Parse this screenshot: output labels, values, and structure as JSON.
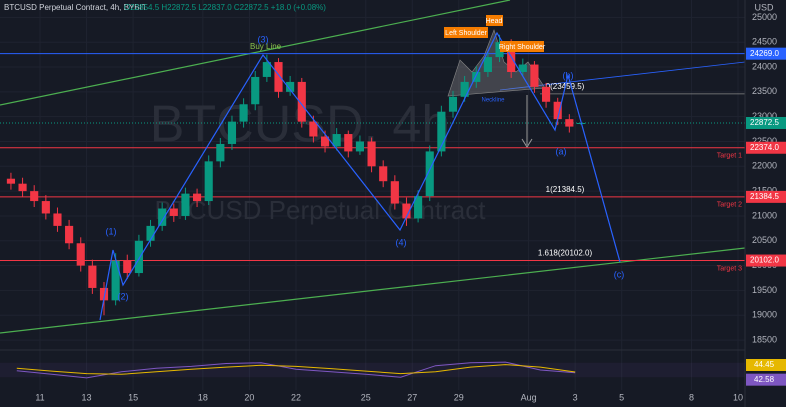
{
  "chart_data": {
    "type": "candlestick",
    "title": "BTCUSD Perpetual Contract, 4h, BYBIT",
    "ohlc_label": "O22854.5 H22872.5 L22837.0 C22872.5 +18.0 (+0.08%)",
    "y_axis_label": "USD",
    "watermark": [
      "BTCUSD, 4h",
      "BTCUSD Perpetual Contract"
    ],
    "up_color": "#089981",
    "down_color": "#f23645",
    "x": [
      9.5,
      10,
      10.5,
      11,
      11.5,
      12,
      12.5,
      13,
      13.5,
      14,
      14.5,
      15,
      15.5,
      16,
      16.5,
      17,
      17.5,
      18,
      18.5,
      19,
      19.5,
      20,
      20.5,
      21,
      21.5,
      22,
      22.5,
      23,
      23.5,
      24,
      24.5,
      25,
      25.5,
      26,
      26.5,
      27,
      27.5,
      28,
      28.5,
      29,
      29.5,
      30,
      30.5,
      31,
      31.5,
      32,
      32.5,
      33,
      33.5,
      34
    ],
    "open": [
      21750,
      21650,
      21500,
      21300,
      21050,
      20800,
      20450,
      20000,
      19550,
      19300,
      20100,
      19850,
      20500,
      20800,
      21150,
      21000,
      21450,
      21300,
      22100,
      22450,
      22900,
      23250,
      23800,
      24100,
      23500,
      23700,
      22900,
      22600,
      22400,
      22650,
      22300,
      22500,
      22000,
      21700,
      21250,
      20950,
      21400,
      22300,
      23100,
      23400,
      23700,
      23900,
      24200,
      24500,
      23900,
      24050,
      23600,
      23300,
      22950,
      22854.5
    ],
    "high": [
      21870,
      21770,
      21620,
      21420,
      21170,
      20920,
      20570,
      20120,
      19670,
      20250,
      20220,
      20620,
      20920,
      21270,
      21250,
      21570,
      21550,
      22220,
      22570,
      23020,
      23370,
      23920,
      24250,
      24180,
      23820,
      23780,
      23020,
      22720,
      22770,
      22720,
      22620,
      22580,
      22120,
      21820,
      21370,
      21520,
      22420,
      23220,
      23520,
      23820,
      24020,
      24320,
      24650,
      24560,
      24170,
      24120,
      23680,
      23380,
      23050,
      22872.5
    ],
    "low": [
      21530,
      21380,
      21180,
      20930,
      20680,
      20330,
      19880,
      19430,
      19000,
      19200,
      19730,
      19780,
      20380,
      20700,
      20880,
      20920,
      21180,
      21220,
      21980,
      22330,
      22780,
      23130,
      23700,
      23380,
      23420,
      22780,
      22480,
      22280,
      22320,
      22180,
      22230,
      21880,
      21580,
      21130,
      20800,
      20870,
      21300,
      22200,
      22980,
      23300,
      23580,
      23800,
      24100,
      23780,
      23820,
      23480,
      23180,
      22830,
      22680,
      22837
    ],
    "close": [
      21650,
      21500,
      21300,
      21050,
      20800,
      20450,
      20000,
      19550,
      19300,
      20100,
      19850,
      20500,
      20800,
      21150,
      21000,
      21450,
      21300,
      22100,
      22450,
      22900,
      23250,
      23800,
      24100,
      23500,
      23700,
      22900,
      22600,
      22400,
      22650,
      22300,
      22500,
      22000,
      21700,
      21250,
      20950,
      21400,
      22300,
      23100,
      23400,
      23700,
      23900,
      24200,
      24500,
      23900,
      24050,
      23600,
      23300,
      22950,
      22800,
      22872.5
    ],
    "xlim": [
      9.28,
      41.3
    ],
    "ylim": [
      18300,
      25350
    ],
    "xticks": [
      11,
      13,
      15,
      18,
      20,
      22,
      25,
      27,
      29,
      {
        "value": 32,
        "label": "Aug"
      },
      {
        "value": 34,
        "label": "3"
      },
      {
        "value": 36,
        "label": "5"
      },
      {
        "value": 39,
        "label": "8"
      },
      {
        "value": 41,
        "label": "10"
      }
    ],
    "yticks": [
      18500,
      19000,
      19500,
      20000,
      20500,
      21000,
      21500,
      22000,
      22500,
      23000,
      23500,
      24000,
      24500,
      25000
    ],
    "grid": true,
    "last_price": 22872.5,
    "last_price_label": "22872.5",
    "levels": {
      "values": [
        24269,
        22374,
        21384.5,
        20102
      ],
      "value_labels": [
        "24269.0",
        "22374.0",
        "21384.5",
        "20102.0"
      ],
      "colors": [
        "#2962ff",
        "#f23645",
        "#f23645",
        "#f23645"
      ],
      "names": [
        null,
        "Target 1",
        "Target 2",
        "Target 3"
      ]
    },
    "fib": {
      "values": [
        23459.5,
        21384.5,
        20102
      ],
      "labels": [
        "0(23459.5)",
        "1(21384.5)",
        "1.618(20102.0)"
      ]
    },
    "annotations": [
      "Buy Line",
      "(1)",
      "(2)",
      "(3)",
      "(4)",
      "(a)",
      "(b)",
      "(c)",
      "Left Shoulder",
      "Head",
      "Right Shoulder",
      "Neckline"
    ],
    "oscillator": {
      "x": [
        10,
        11.5,
        13,
        14.5,
        16,
        17.5,
        19,
        20.5,
        22,
        23.5,
        25,
        26.5,
        28,
        29.5,
        31,
        32.5,
        34
      ],
      "ylim": [
        0,
        100
      ],
      "series": [
        {
          "color": "#7e57c2",
          "values": [
            48,
            38,
            28,
            45,
            55,
            60,
            68,
            70,
            52,
            45,
            38,
            30,
            62,
            70,
            72,
            50,
            42.58
          ],
          "value_label": "42.58"
        },
        {
          "color": "#e6b800",
          "values": [
            55,
            47,
            40,
            38,
            45,
            52,
            58,
            63,
            60,
            54,
            47,
            40,
            45,
            58,
            65,
            58,
            44.45
          ],
          "value_label": "44.45"
        }
      ]
    }
  }
}
